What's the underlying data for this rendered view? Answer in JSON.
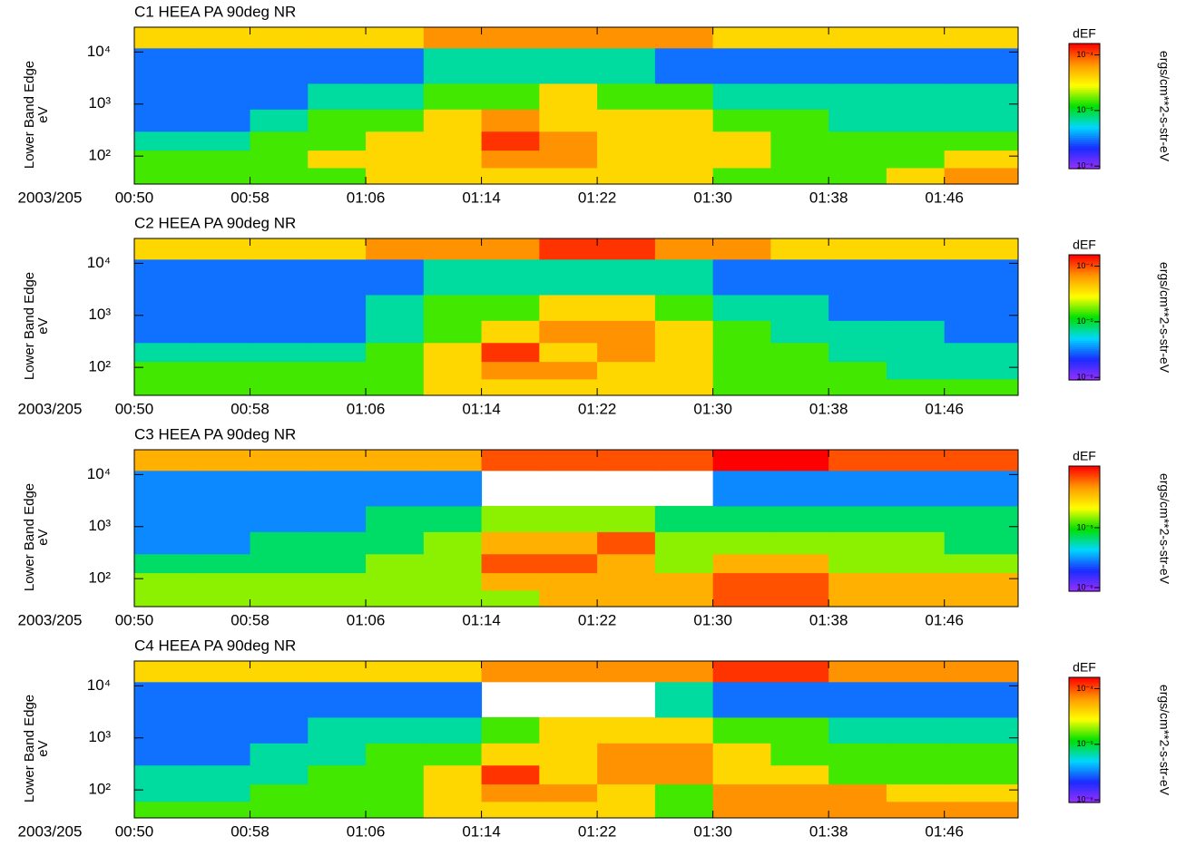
{
  "chart_data": [
    {
      "type": "heatmap",
      "title": "C1 HEEA PA 90deg NR",
      "xlabel": "2003/205",
      "ylabel": [
        "Lower Band Edge",
        "eV"
      ],
      "x": [
        50,
        54,
        58,
        62,
        66,
        70,
        74,
        78,
        82,
        86,
        90,
        94,
        98,
        102,
        106,
        111.1
      ],
      "y": [
        29,
        60,
        130,
        300,
        800,
        2500,
        12000,
        30000
      ],
      "xlim": [
        50,
        111.1
      ],
      "ylim": [
        29,
        30000
      ],
      "ylog": true,
      "xticks": [
        {
          "value": 50,
          "label": "00:50"
        },
        {
          "value": 58,
          "label": "00:58"
        },
        {
          "value": 66,
          "label": "01:06"
        },
        {
          "value": 74,
          "label": "01:14"
        },
        {
          "value": 82,
          "label": "01:22"
        },
        {
          "value": 90,
          "label": "01:30"
        },
        {
          "value": 98,
          "label": "01:38"
        },
        {
          "value": 106,
          "label": "01:46"
        }
      ],
      "yticks": [
        {
          "value": 100,
          "label": "10²"
        },
        {
          "value": 1000,
          "label": "10³"
        },
        {
          "value": 10000,
          "label": "10⁴"
        }
      ],
      "z": [
        [
          1.5e-05,
          1.5e-05,
          1.5e-05,
          1.5e-05,
          4e-05,
          4e-05,
          4e-05,
          4e-05,
          4e-05,
          4e-05,
          1.5e-05,
          1.5e-05,
          1.5e-05,
          4e-05,
          7e-05
        ],
        [
          1.5e-05,
          1.5e-05,
          1.5e-05,
          4e-05,
          4e-05,
          4e-05,
          7e-05,
          7e-05,
          4e-05,
          4e-05,
          4e-05,
          1.5e-05,
          1.5e-05,
          1.5e-05,
          4e-05
        ],
        [
          7e-06,
          7e-06,
          1.5e-05,
          1.5e-05,
          4e-05,
          4e-05,
          0.00012,
          7e-05,
          4e-05,
          4e-05,
          4e-05,
          1.5e-05,
          1.5e-05,
          1.5e-05,
          1.5e-05
        ],
        [
          3e-06,
          3e-06,
          7e-06,
          1.5e-05,
          1.5e-05,
          4e-05,
          7e-05,
          4e-05,
          4e-05,
          4e-05,
          1.5e-05,
          1.5e-05,
          7e-06,
          7e-06,
          7e-06
        ],
        [
          3e-06,
          3e-06,
          3e-06,
          7e-06,
          7e-06,
          1.5e-05,
          1.5e-05,
          4e-05,
          1.5e-05,
          1.5e-05,
          7e-06,
          7e-06,
          7e-06,
          7e-06,
          7e-06
        ],
        [
          3e-06,
          3e-06,
          3e-06,
          3e-06,
          3e-06,
          7e-06,
          7e-06,
          7e-06,
          7e-06,
          3e-06,
          3e-06,
          3e-06,
          3e-06,
          3e-06,
          3e-06
        ],
        [
          4e-05,
          4e-05,
          4e-05,
          4e-05,
          4e-05,
          7e-05,
          7e-05,
          7e-05,
          7e-05,
          7e-05,
          4e-05,
          4e-05,
          4e-05,
          4e-05,
          4e-05
        ]
      ],
      "colorbar": {
        "title": "dEF",
        "label": "ergs/cm**2-s-str-eV",
        "lim": [
          9e-07,
          0.00016
        ],
        "log": true,
        "ticks": [
          {
            "value": 1e-06,
            "label": "10⁻⁶"
          },
          {
            "value": 1e-05,
            "label": "10⁻⁵"
          },
          {
            "value": 0.0001,
            "label": "10⁻⁴"
          }
        ],
        "colormap": [
          "#9b30ff",
          "#1a2cff",
          "#00d8ff",
          "#00e000",
          "#ffff00",
          "#ff9900",
          "#ff0000"
        ]
      }
    },
    {
      "type": "heatmap",
      "title": "C2 HEEA PA 90deg NR",
      "xlabel": "2003/205",
      "ylabel": [
        "Lower Band Edge",
        "eV"
      ],
      "x": [
        50,
        54,
        58,
        62,
        66,
        70,
        74,
        78,
        82,
        86,
        90,
        94,
        98,
        102,
        106,
        111.1
      ],
      "y": [
        29,
        60,
        130,
        300,
        800,
        2500,
        12000,
        30000
      ],
      "xlim": [
        50,
        111.1
      ],
      "ylim": [
        29,
        30000
      ],
      "ylog": true,
      "xticks": [
        {
          "value": 50,
          "label": "00:50"
        },
        {
          "value": 58,
          "label": "00:58"
        },
        {
          "value": 66,
          "label": "01:06"
        },
        {
          "value": 74,
          "label": "01:14"
        },
        {
          "value": 82,
          "label": "01:22"
        },
        {
          "value": 90,
          "label": "01:30"
        },
        {
          "value": 98,
          "label": "01:38"
        },
        {
          "value": 106,
          "label": "01:46"
        }
      ],
      "yticks": [
        {
          "value": 100,
          "label": "10²"
        },
        {
          "value": 1000,
          "label": "10³"
        },
        {
          "value": 10000,
          "label": "10⁴"
        }
      ],
      "z": [
        [
          1.5e-05,
          1.5e-05,
          1.5e-05,
          1.5e-05,
          1.5e-05,
          4e-05,
          4e-05,
          4e-05,
          4e-05,
          4e-05,
          1.5e-05,
          1.5e-05,
          1.5e-05,
          1.5e-05,
          1.5e-05
        ],
        [
          1.5e-05,
          1.5e-05,
          1.5e-05,
          1.5e-05,
          1.5e-05,
          4e-05,
          7e-05,
          7e-05,
          4e-05,
          4e-05,
          1.5e-05,
          1.5e-05,
          1.5e-05,
          7e-06,
          7e-06
        ],
        [
          7e-06,
          7e-06,
          7e-06,
          7e-06,
          1.5e-05,
          4e-05,
          0.00012,
          4e-05,
          7e-05,
          4e-05,
          1.5e-05,
          1.5e-05,
          7e-06,
          7e-06,
          7e-06
        ],
        [
          3e-06,
          3e-06,
          3e-06,
          3e-06,
          7e-06,
          1.5e-05,
          4e-05,
          7e-05,
          7e-05,
          4e-05,
          1.5e-05,
          7e-06,
          7e-06,
          7e-06,
          3e-06
        ],
        [
          3e-06,
          3e-06,
          3e-06,
          3e-06,
          7e-06,
          1.5e-05,
          1.5e-05,
          4e-05,
          4e-05,
          1.5e-05,
          7e-06,
          7e-06,
          3e-06,
          3e-06,
          3e-06
        ],
        [
          3e-06,
          3e-06,
          3e-06,
          3e-06,
          3e-06,
          7e-06,
          7e-06,
          7e-06,
          7e-06,
          7e-06,
          3e-06,
          3e-06,
          3e-06,
          3e-06,
          3e-06
        ],
        [
          4e-05,
          4e-05,
          4e-05,
          4e-05,
          7e-05,
          7e-05,
          7e-05,
          0.00012,
          0.00012,
          7e-05,
          7e-05,
          4e-05,
          4e-05,
          4e-05,
          4e-05
        ]
      ],
      "colorbar": {
        "title": "dEF",
        "label": "ergs/cm**2-s-str-eV",
        "lim": [
          9e-07,
          0.00016
        ],
        "log": true,
        "ticks": [
          {
            "value": 1e-06,
            "label": "10⁻⁶"
          },
          {
            "value": 1e-05,
            "label": "10⁻⁵"
          },
          {
            "value": 0.0001,
            "label": "10⁻⁴"
          }
        ],
        "colormap": [
          "#9b30ff",
          "#1a2cff",
          "#00d8ff",
          "#00e000",
          "#ffff00",
          "#ff9900",
          "#ff0000"
        ]
      }
    },
    {
      "type": "heatmap",
      "title": "C3 HEEA PA 90deg NR",
      "xlabel": "2003/205",
      "ylabel": [
        "Lower Band Edge",
        "eV"
      ],
      "x": [
        50,
        54,
        58,
        62,
        66,
        70,
        74,
        78,
        82,
        86,
        90,
        94,
        98,
        102,
        106,
        111.1
      ],
      "y": [
        29,
        60,
        130,
        300,
        800,
        2500,
        12000,
        30000
      ],
      "xlim": [
        50,
        111.1
      ],
      "ylim": [
        29,
        30000
      ],
      "ylog": true,
      "xticks": [
        {
          "value": 50,
          "label": "00:50"
        },
        {
          "value": 58,
          "label": "00:58"
        },
        {
          "value": 66,
          "label": "01:06"
        },
        {
          "value": 74,
          "label": "01:14"
        },
        {
          "value": 82,
          "label": "01:22"
        },
        {
          "value": 90,
          "label": "01:30"
        },
        {
          "value": 98,
          "label": "01:38"
        },
        {
          "value": 106,
          "label": "01:46"
        }
      ],
      "yticks": [
        {
          "value": 100,
          "label": "10²"
        },
        {
          "value": 1000,
          "label": "10³"
        },
        {
          "value": 10000,
          "label": "10⁴"
        }
      ],
      "z": [
        [
          1.5e-05,
          1.5e-05,
          1.5e-05,
          1.5e-05,
          1.5e-05,
          1.5e-05,
          1.5e-05,
          4e-05,
          4e-05,
          4e-05,
          7e-05,
          7e-05,
          4e-05,
          4e-05,
          4e-05
        ],
        [
          1.5e-05,
          1.5e-05,
          1.5e-05,
          1.5e-05,
          1.5e-05,
          1.5e-05,
          4e-05,
          4e-05,
          4e-05,
          4e-05,
          7e-05,
          7e-05,
          4e-05,
          4e-05,
          4e-05
        ],
        [
          7e-06,
          7e-06,
          7e-06,
          7e-06,
          1.5e-05,
          1.5e-05,
          7e-05,
          7e-05,
          4e-05,
          1.5e-05,
          4e-05,
          4e-05,
          1.5e-05,
          1.5e-05,
          1.5e-05
        ],
        [
          3e-06,
          3e-06,
          7e-06,
          7e-06,
          7e-06,
          1.5e-05,
          4e-05,
          4e-05,
          7e-05,
          1.5e-05,
          1.5e-05,
          1.5e-05,
          1.5e-05,
          1.5e-05,
          7e-06
        ],
        [
          3e-06,
          3e-06,
          3e-06,
          3e-06,
          7e-06,
          7e-06,
          1.5e-05,
          1.5e-05,
          1.5e-05,
          7e-06,
          7e-06,
          7e-06,
          7e-06,
          7e-06,
          7e-06
        ],
        [
          3e-06,
          3e-06,
          3e-06,
          3e-06,
          3e-06,
          3e-06,
          null,
          null,
          null,
          null,
          3e-06,
          3e-06,
          3e-06,
          3e-06,
          3e-06
        ],
        [
          4e-05,
          4e-05,
          4e-05,
          4e-05,
          4e-05,
          4e-05,
          7e-05,
          7e-05,
          7e-05,
          7e-05,
          0.00012,
          0.00012,
          7e-05,
          7e-05,
          7e-05
        ]
      ],
      "colorbar": {
        "title": "dEF",
        "label": "ergs/cm**2-s-str-eV",
        "lim": [
          8.7e-07,
          0.000107
        ],
        "log": true,
        "ticks": [
          {
            "value": 1e-06,
            "label": "10⁻⁶"
          },
          {
            "value": 1e-05,
            "label": "10⁻⁵"
          }
        ],
        "colormap": [
          "#9b30ff",
          "#1a2cff",
          "#00d8ff",
          "#00e000",
          "#ffff00",
          "#ff9900",
          "#ff0000"
        ]
      }
    },
    {
      "type": "heatmap",
      "title": "C4 HEEA PA 90deg NR",
      "xlabel": "2003/205",
      "ylabel": [
        "Lower Band Edge",
        "eV"
      ],
      "x": [
        50,
        54,
        58,
        62,
        66,
        70,
        74,
        78,
        82,
        86,
        90,
        94,
        98,
        102,
        106,
        111.1
      ],
      "y": [
        29,
        60,
        130,
        300,
        800,
        2500,
        12000,
        30000
      ],
      "xlim": [
        50,
        111.1
      ],
      "ylim": [
        29,
        30000
      ],
      "ylog": true,
      "xticks": [
        {
          "value": 50,
          "label": "00:50"
        },
        {
          "value": 58,
          "label": "00:58"
        },
        {
          "value": 66,
          "label": "01:06"
        },
        {
          "value": 74,
          "label": "01:14"
        },
        {
          "value": 82,
          "label": "01:22"
        },
        {
          "value": 90,
          "label": "01:30"
        },
        {
          "value": 98,
          "label": "01:38"
        },
        {
          "value": 106,
          "label": "01:46"
        }
      ],
      "yticks": [
        {
          "value": 100,
          "label": "10²"
        },
        {
          "value": 1000,
          "label": "10³"
        },
        {
          "value": 10000,
          "label": "10⁴"
        }
      ],
      "z": [
        [
          1.5e-05,
          1.5e-05,
          1.5e-05,
          1.5e-05,
          1.5e-05,
          4e-05,
          4e-05,
          4e-05,
          4e-05,
          1.5e-05,
          7e-05,
          7e-05,
          7e-05,
          7e-05,
          7e-05
        ],
        [
          7e-06,
          7e-06,
          1.5e-05,
          1.5e-05,
          1.5e-05,
          4e-05,
          7e-05,
          7e-05,
          4e-05,
          1.5e-05,
          7e-05,
          7e-05,
          7e-05,
          4e-05,
          4e-05
        ],
        [
          7e-06,
          7e-06,
          7e-06,
          1.5e-05,
          1.5e-05,
          4e-05,
          0.00012,
          4e-05,
          7e-05,
          7e-05,
          4e-05,
          4e-05,
          1.5e-05,
          1.5e-05,
          1.5e-05
        ],
        [
          3e-06,
          3e-06,
          7e-06,
          7e-06,
          1.5e-05,
          1.5e-05,
          4e-05,
          4e-05,
          7e-05,
          7e-05,
          4e-05,
          1.5e-05,
          1.5e-05,
          1.5e-05,
          1.5e-05
        ],
        [
          3e-06,
          3e-06,
          3e-06,
          7e-06,
          7e-06,
          7e-06,
          1.5e-05,
          4e-05,
          4e-05,
          4e-05,
          1.5e-05,
          1.5e-05,
          7e-06,
          7e-06,
          7e-06
        ],
        [
          3e-06,
          3e-06,
          3e-06,
          3e-06,
          3e-06,
          3e-06,
          null,
          null,
          null,
          7e-06,
          3e-06,
          3e-06,
          3e-06,
          3e-06,
          3e-06
        ],
        [
          4e-05,
          4e-05,
          4e-05,
          4e-05,
          4e-05,
          4e-05,
          7e-05,
          7e-05,
          7e-05,
          7e-05,
          0.00012,
          0.00012,
          7e-05,
          7e-05,
          7e-05
        ]
      ],
      "colorbar": {
        "title": "dEF",
        "label": "ergs/cm**2-s-str-eV",
        "lim": [
          9e-07,
          0.00016
        ],
        "log": true,
        "ticks": [
          {
            "value": 1e-06,
            "label": "10⁻⁶"
          },
          {
            "value": 1e-05,
            "label": "10⁻⁵"
          },
          {
            "value": 0.0001,
            "label": "10⁻⁴"
          }
        ],
        "colormap": [
          "#9b30ff",
          "#1a2cff",
          "#00d8ff",
          "#00e000",
          "#ffff00",
          "#ff9900",
          "#ff0000"
        ]
      }
    }
  ]
}
